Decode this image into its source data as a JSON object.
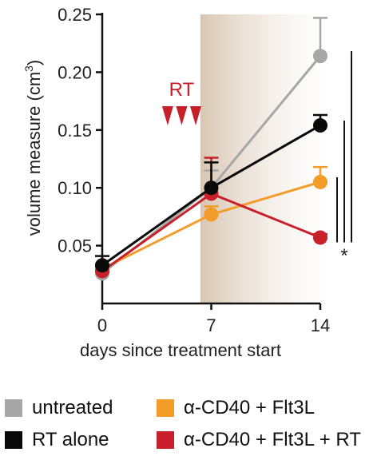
{
  "chart_data": {
    "type": "line",
    "title": "",
    "xlabel": "days since treatment start",
    "ylabel": "volume measure (cm³)",
    "ylabel_main": "volume measure (cm",
    "ylabel_sup": "3",
    "ylabel_close": ")",
    "x": [
      0,
      7,
      14
    ],
    "x_ticks": [
      "0",
      "7",
      "14"
    ],
    "y_ticks": [
      "0.05",
      "0.10",
      "0.15",
      "0.20",
      "0.25"
    ],
    "xlim": [
      0,
      14
    ],
    "ylim": [
      0,
      0.25
    ],
    "grid": false,
    "legend_position": "bottom",
    "shaded_region": {
      "x_start": 6.3,
      "x_end": 14,
      "color_start": "#d8c6b2",
      "color_end": "#ffffff"
    },
    "annotations": {
      "rt_label": "RT",
      "rt_marker_days": [
        4.2,
        5.1,
        6.0
      ],
      "rt_marker_color": "#c8202a",
      "significance": "*"
    },
    "series": [
      {
        "name": "untreated",
        "color": "#a6a6a6",
        "values": [
          0.026,
          0.1,
          0.214
        ],
        "err": [
          0.005,
          0.015,
          0.033
        ]
      },
      {
        "name": "α-CD40 + Flt3L",
        "color": "#f39c2a",
        "values": [
          0.03,
          0.077,
          0.105
        ],
        "err": [
          0.004,
          0.007,
          0.013
        ]
      },
      {
        "name": "α-CD40 + Flt3L + RT",
        "color": "#c8202a",
        "values": [
          0.028,
          0.095,
          0.057
        ],
        "err": [
          0.004,
          0.031,
          0.003
        ]
      },
      {
        "name": "RT alone",
        "color": "#0a0a0a",
        "values": [
          0.033,
          0.1,
          0.154
        ],
        "err": [
          0.008,
          0.022,
          0.009
        ]
      }
    ]
  },
  "legend": {
    "items": [
      {
        "label": "untreated",
        "color": "#a6a6a6"
      },
      {
        "label": "RT alone",
        "color": "#0a0a0a"
      },
      {
        "label": "α-CD40 + Flt3L",
        "color": "#f39c2a"
      },
      {
        "label": "α-CD40 + Flt3L + RT",
        "color": "#c8202a"
      }
    ]
  }
}
